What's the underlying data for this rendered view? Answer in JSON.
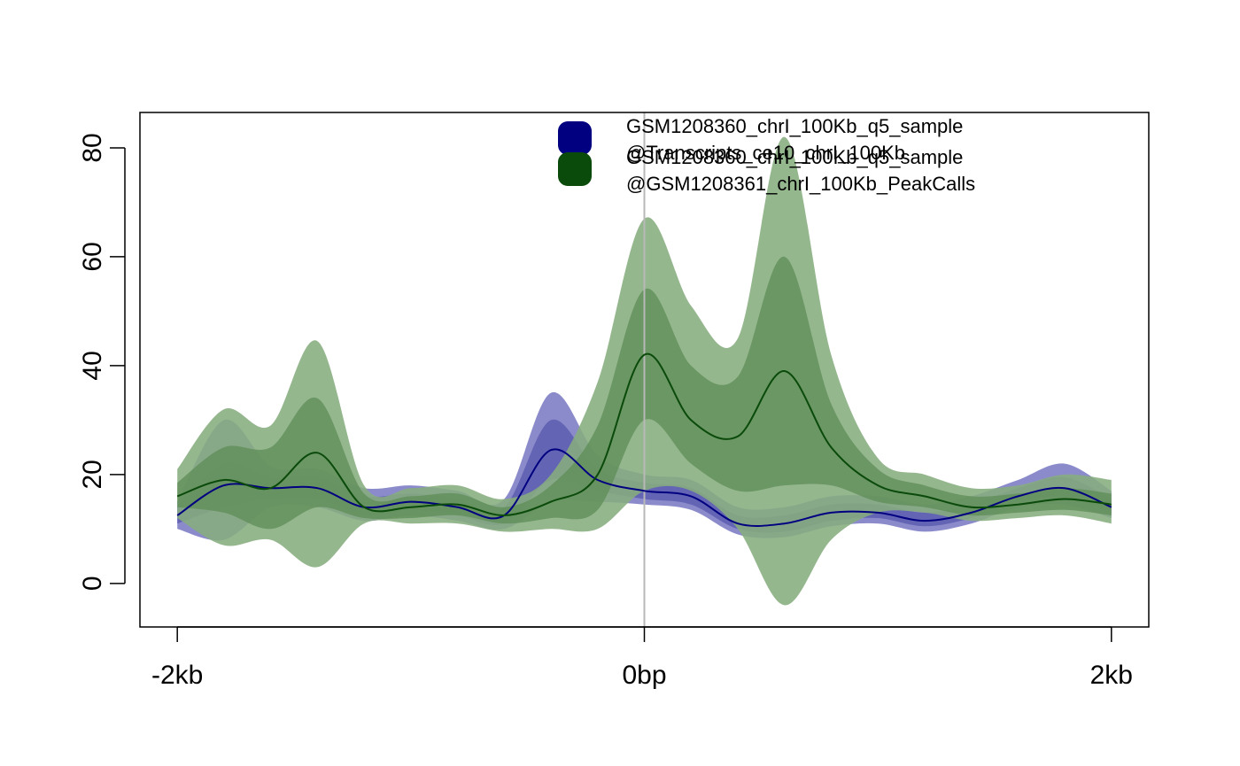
{
  "chart_data": {
    "type": "area",
    "x_ticks": [
      {
        "value": -2000,
        "label": "-2kb"
      },
      {
        "value": 0,
        "label": "0bp"
      },
      {
        "value": 2000,
        "label": "2kb"
      }
    ],
    "y_ticks": [
      {
        "value": 0,
        "label": "0"
      },
      {
        "value": 20,
        "label": "20"
      },
      {
        "value": 40,
        "label": "40"
      },
      {
        "value": 60,
        "label": "60"
      },
      {
        "value": 80,
        "label": "80"
      }
    ],
    "xlim": [
      -2160,
      2160
    ],
    "ylim": [
      -8,
      86.5
    ],
    "vline_x": 0,
    "legend_position": "top",
    "series": [
      {
        "name": "GSM1208360_chrI_100Kb_q5_sample @Transcripts_ce10_chrI_100Kb",
        "legend_lines": [
          "GSM1208360_chrI_100Kb_q5_sample",
          "@Transcripts_ce10_chrI_100Kb"
        ],
        "color": "#000080",
        "band_colors": [
          "#7b7bc4",
          "#5757ad"
        ],
        "x": [
          -2000,
          -1800,
          -1600,
          -1400,
          -1200,
          -1000,
          -800,
          -600,
          -400,
          -200,
          0,
          200,
          400,
          600,
          800,
          1000,
          1200,
          1400,
          1600,
          1800,
          2000
        ],
        "mean": [
          12.5,
          18,
          17.5,
          17.5,
          14,
          15,
          14,
          12.5,
          24.5,
          19,
          17,
          16,
          11,
          11,
          13,
          13,
          11.5,
          13,
          16,
          17.5,
          14
        ],
        "inner": [
          [
            11,
            14
          ],
          [
            14,
            22
          ],
          [
            15.5,
            19.5
          ],
          [
            15.5,
            19.5
          ],
          [
            12.5,
            16
          ],
          [
            13.5,
            16.5
          ],
          [
            12.5,
            15.5
          ],
          [
            11,
            14
          ],
          [
            19,
            30
          ],
          [
            17,
            21
          ],
          [
            15.5,
            18.5
          ],
          [
            14.5,
            17.5
          ],
          [
            10,
            12.5
          ],
          [
            9.5,
            12.5
          ],
          [
            11.5,
            14.5
          ],
          [
            12,
            14.5
          ],
          [
            10.5,
            13
          ],
          [
            12,
            14.5
          ],
          [
            15,
            17.5
          ],
          [
            16,
            19.5
          ],
          [
            13,
            15.5
          ]
        ],
        "outer": [
          [
            10,
            15
          ],
          [
            8,
            30
          ],
          [
            14,
            21.5
          ],
          [
            14,
            21
          ],
          [
            11.5,
            17.5
          ],
          [
            12.5,
            18
          ],
          [
            11.5,
            17
          ],
          [
            10,
            15.5
          ],
          [
            15,
            35
          ],
          [
            15,
            23.5
          ],
          [
            14.5,
            20
          ],
          [
            13.5,
            19
          ],
          [
            9,
            14
          ],
          [
            8.5,
            14
          ],
          [
            10.5,
            16
          ],
          [
            11,
            16
          ],
          [
            9.5,
            14.5
          ],
          [
            11,
            16
          ],
          [
            14,
            19
          ],
          [
            14.5,
            22
          ],
          [
            12,
            17
          ]
        ]
      },
      {
        "name": "GSM1208360_chrI_100Kb_q5_sample @GSM1208361_chrI_100Kb_PeakCalls",
        "legend_lines": [
          "GSM1208360_chrI_100Kb_q5_sample",
          "@GSM1208361_chrI_100Kb_PeakCalls"
        ],
        "color": "#0a4a0a",
        "band_colors": [
          "#86ad7e",
          "#5e8c56"
        ],
        "x": [
          -2000,
          -1800,
          -1600,
          -1400,
          -1200,
          -1000,
          -800,
          -600,
          -400,
          -200,
          0,
          200,
          400,
          600,
          800,
          1000,
          1200,
          1400,
          1600,
          1800,
          2000
        ],
        "mean": [
          16,
          19,
          17.5,
          24,
          14,
          14,
          14.5,
          12.5,
          15,
          20,
          42,
          30,
          27,
          39,
          25,
          18,
          16,
          14,
          14.5,
          15.5,
          14.5
        ],
        "inner": [
          [
            14,
            18.5
          ],
          [
            13,
            25
          ],
          [
            10,
            25
          ],
          [
            14,
            34
          ],
          [
            12,
            16.5
          ],
          [
            12,
            16
          ],
          [
            12.5,
            16.5
          ],
          [
            11,
            14
          ],
          [
            12,
            18
          ],
          [
            13.5,
            29
          ],
          [
            30,
            54
          ],
          [
            22,
            40
          ],
          [
            17,
            38
          ],
          [
            18,
            60
          ],
          [
            18,
            33
          ],
          [
            15,
            21
          ],
          [
            14,
            18
          ],
          [
            12.5,
            16
          ],
          [
            13,
            16.5
          ],
          [
            13.5,
            17.5
          ],
          [
            12.5,
            16.5
          ]
        ],
        "outer": [
          [
            12,
            21
          ],
          [
            7,
            32
          ],
          [
            8,
            29
          ],
          [
            3,
            44.5
          ],
          [
            11,
            18
          ],
          [
            11,
            17.5
          ],
          [
            11,
            18
          ],
          [
            9.5,
            15.5
          ],
          [
            10,
            20
          ],
          [
            10,
            37
          ],
          [
            17,
            67
          ],
          [
            17,
            51
          ],
          [
            10,
            45
          ],
          [
            -4,
            82
          ],
          [
            8,
            42
          ],
          [
            13,
            23
          ],
          [
            13,
            20
          ],
          [
            11.5,
            17.5
          ],
          [
            12,
            18
          ],
          [
            12.5,
            20
          ],
          [
            11,
            19
          ]
        ]
      }
    ]
  }
}
